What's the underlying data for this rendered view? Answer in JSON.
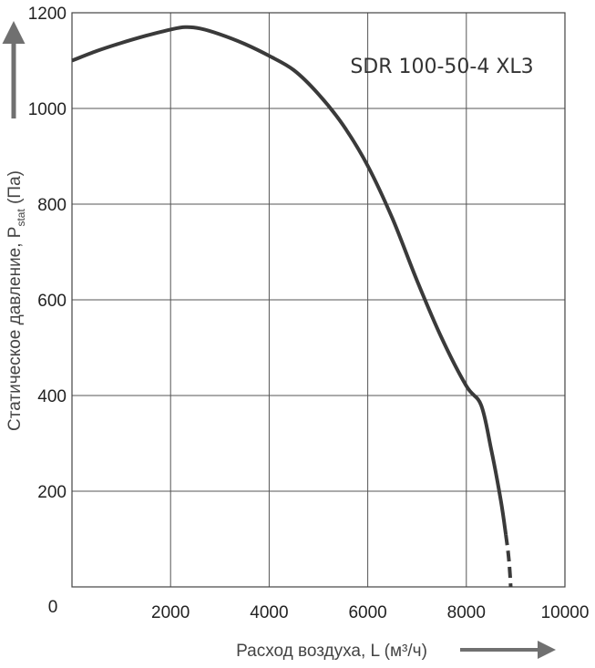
{
  "chart_data": {
    "type": "line",
    "title": "SDR 100-50-4 XL3",
    "xlabel": "Расход воздуха, L (м³/ч)",
    "ylabel": "Статическое давление, Pstat (Па)",
    "ylabel_parts": {
      "prefix": "Статическое давление, P",
      "subscript": "stat",
      "suffix": " (Па)"
    },
    "xlim": [
      0,
      10000
    ],
    "ylim": [
      0,
      1200
    ],
    "x_ticks": [
      2000,
      4000,
      6000,
      8000,
      10000
    ],
    "x_tick_labels": [
      "2000",
      "4000",
      "6000",
      "8000",
      "10000"
    ],
    "y_ticks": [
      200,
      400,
      600,
      800,
      1000,
      1200
    ],
    "y_tick_labels": [
      "200",
      "400",
      "600",
      "800",
      "1000",
      "1200"
    ],
    "origin_label": "0",
    "grid": true,
    "line_color": "#3a3a3a",
    "arrow_color": "#707070",
    "series": [
      {
        "style": "solid",
        "x": [
          0,
          500,
          1000,
          1500,
          2000,
          2300,
          2600,
          3000,
          3500,
          4000,
          4500,
          5000,
          5500,
          6000,
          6500,
          7000,
          7500,
          8000,
          8300,
          8500,
          8700,
          8800
        ],
        "y": [
          1100,
          1120,
          1137,
          1152,
          1165,
          1170,
          1167,
          1155,
          1135,
          1110,
          1080,
          1030,
          965,
          880,
          770,
          640,
          520,
          420,
          380,
          290,
          180,
          110
        ]
      },
      {
        "style": "dashed",
        "x": [
          8800,
          8850,
          8880,
          8900
        ],
        "y": [
          110,
          70,
          35,
          0
        ]
      }
    ]
  }
}
